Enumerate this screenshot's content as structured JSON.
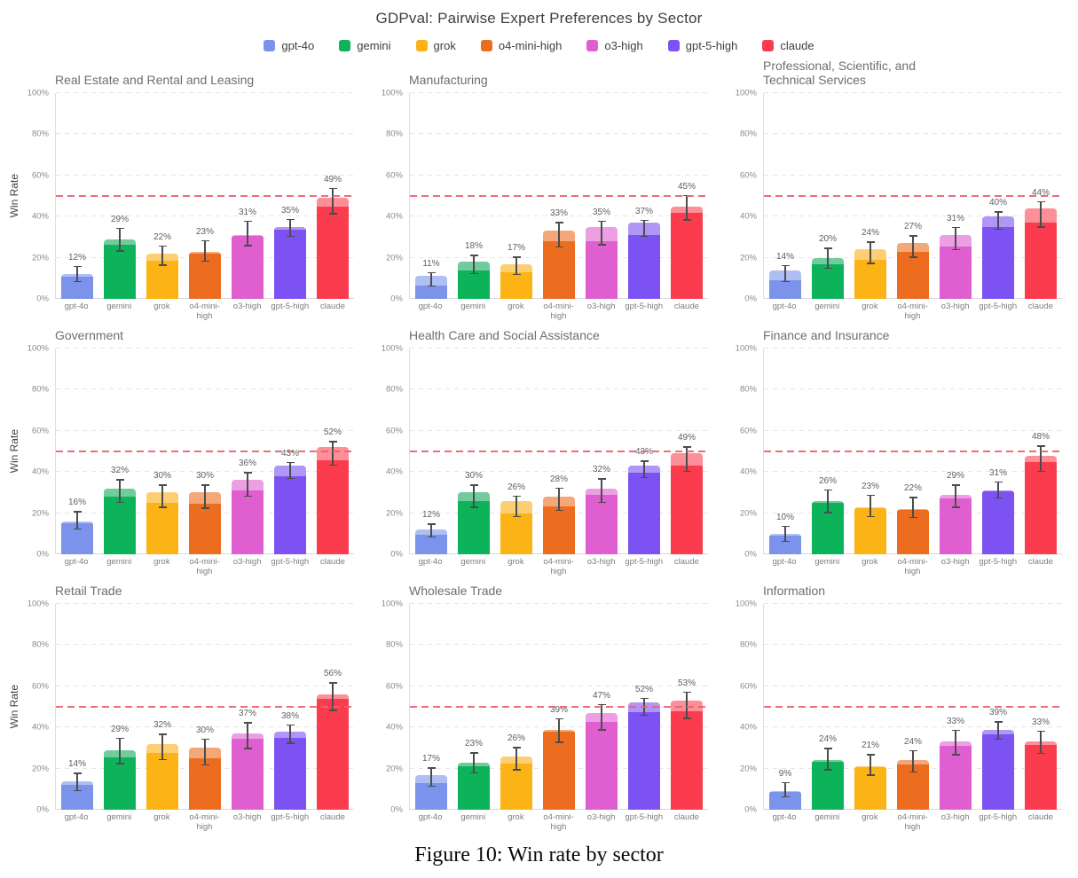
{
  "figure": {
    "title": "GDPval: Pairwise Expert Preferences by Sector",
    "caption": "Figure 10: Win rate by sector"
  },
  "legend": [
    {
      "name": "gpt-4o",
      "color": "#7B93EA",
      "light": "#AFBEF3"
    },
    {
      "name": "gemini",
      "color": "#0CB35B",
      "light": "#72CB9D"
    },
    {
      "name": "grok",
      "color": "#FCB315",
      "light": "#FDCF74"
    },
    {
      "name": "o4-mini-high",
      "color": "#ED6D20",
      "light": "#F4A779"
    },
    {
      "name": "o3-high",
      "color": "#E05FD0",
      "light": "#EC9FE2"
    },
    {
      "name": "gpt-5-high",
      "color": "#7C52F2",
      "light": "#B097F7"
    },
    {
      "name": "claude",
      "color": "#FA3C4E",
      "light": "#FC8F98"
    }
  ],
  "chart_data": {
    "type": "bar",
    "grid": "3x3",
    "ylabel": "Win Rate",
    "yticks": [
      "0%",
      "20%",
      "40%",
      "60%",
      "80%",
      "100%"
    ],
    "ylim": [
      0,
      100
    ],
    "reference_line_pct": 50,
    "legend_position": "top",
    "models": [
      "gpt-4o",
      "gemini",
      "grok",
      "o4-mini-high",
      "o3-high",
      "gpt-5-high",
      "claude"
    ],
    "charts": [
      {
        "title": "Real Estate and Rental and Leasing",
        "show_ylabel": true,
        "values": [
          12,
          29,
          22,
          23,
          31,
          35,
          49
        ],
        "solid": [
          11,
          26.5,
          18.5,
          22,
          30.5,
          33.5,
          45
        ],
        "err_low": [
          8,
          23,
          16,
          18,
          25.5,
          30,
          41
        ],
        "err_high": [
          16,
          34.5,
          26,
          28.5,
          38,
          39,
          54
        ]
      },
      {
        "title": "Manufacturing",
        "show_ylabel": false,
        "values": [
          11,
          18,
          17,
          33,
          35,
          37,
          45
        ],
        "solid": [
          6.5,
          14,
          13,
          28,
          28,
          31,
          42
        ],
        "err_low": [
          6,
          12,
          11.5,
          25,
          26,
          30,
          38
        ],
        "err_high": [
          13,
          21.5,
          20.5,
          37.5,
          38,
          38.5,
          50.5
        ]
      },
      {
        "title": "Professional, Scientific, and\nTechnical Services",
        "show_ylabel": false,
        "values": [
          14,
          20,
          24,
          27,
          31,
          40,
          44
        ],
        "solid": [
          9,
          17,
          19,
          23,
          25.5,
          35,
          37
        ],
        "err_low": [
          8,
          14.5,
          17,
          20,
          23.5,
          33.5,
          34.5
        ],
        "err_high": [
          16.5,
          25,
          28,
          31,
          35,
          42.5,
          47.5
        ]
      },
      {
        "title": "Government",
        "show_ylabel": true,
        "values": [
          16,
          32,
          30,
          30,
          36,
          43,
          52
        ],
        "solid": [
          15,
          28,
          25,
          24.5,
          31,
          38,
          45.5
        ],
        "err_low": [
          12,
          25,
          22.5,
          22,
          28,
          36.5,
          43
        ],
        "err_high": [
          21,
          36.5,
          34,
          34,
          40,
          45,
          55
        ]
      },
      {
        "title": "Health Care and Social Assistance",
        "show_ylabel": false,
        "values": [
          12,
          30,
          26,
          28,
          32,
          43,
          49
        ],
        "solid": [
          9.5,
          26,
          20,
          23.5,
          29,
          39.5,
          43
        ],
        "err_low": [
          8,
          22.5,
          18,
          21,
          25,
          37,
          40
        ],
        "err_high": [
          15,
          34,
          28.5,
          32.5,
          37,
          45.5,
          52.5
        ]
      },
      {
        "title": "Finance and Insurance",
        "show_ylabel": false,
        "values": [
          10,
          26,
          23,
          22,
          29,
          31,
          48
        ],
        "solid": [
          9,
          25,
          22.5,
          21.5,
          27,
          30.5,
          45
        ],
        "err_low": [
          6,
          20,
          18,
          17.5,
          22.5,
          27,
          40
        ],
        "err_high": [
          14,
          31.5,
          29,
          28,
          34,
          35.5,
          53
        ]
      },
      {
        "title": "Retail Trade",
        "show_ylabel": true,
        "values": [
          14,
          29,
          32,
          30,
          37,
          38,
          56
        ],
        "solid": [
          12,
          25.5,
          27.5,
          25,
          34.5,
          35,
          54
        ],
        "err_low": [
          9,
          22,
          24,
          21.5,
          29.5,
          32,
          48
        ],
        "err_high": [
          18,
          35,
          37,
          34.5,
          42.5,
          41.5,
          62
        ]
      },
      {
        "title": "Wholesale Trade",
        "show_ylabel": false,
        "values": [
          17,
          23,
          26,
          39,
          47,
          52,
          53
        ],
        "solid": [
          13,
          21,
          22.5,
          38,
          42.5,
          47.5,
          48
        ],
        "err_low": [
          11,
          17.5,
          19,
          32.5,
          38.5,
          45.5,
          44
        ],
        "err_high": [
          20.5,
          28,
          30.5,
          44.5,
          51.5,
          54.5,
          57.5
        ]
      },
      {
        "title": "Information",
        "show_ylabel": false,
        "values": [
          9,
          24,
          21,
          24,
          33,
          39,
          33
        ],
        "solid": [
          8.5,
          23.5,
          20.5,
          22,
          31,
          36.5,
          31.5
        ],
        "err_low": [
          6,
          19,
          16.5,
          18,
          26.5,
          34,
          27
        ],
        "err_high": [
          13.5,
          30,
          27,
          29,
          39,
          43,
          38.5
        ]
      }
    ]
  }
}
